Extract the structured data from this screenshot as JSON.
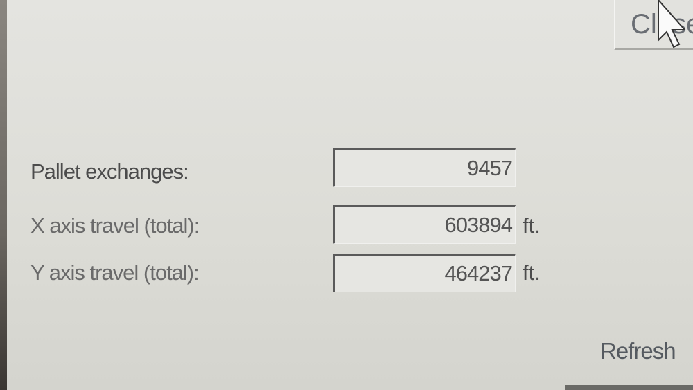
{
  "top_button": {
    "label": "Close"
  },
  "stats": [
    {
      "label": "Pallet exchanges:",
      "value": "9457",
      "unit": ""
    },
    {
      "label": "X axis travel (total):",
      "value": "603894",
      "unit": "ft."
    },
    {
      "label": "Y axis travel (total):",
      "value": "464237",
      "unit": "ft."
    }
  ],
  "refresh_button": {
    "label": "Refresh"
  }
}
